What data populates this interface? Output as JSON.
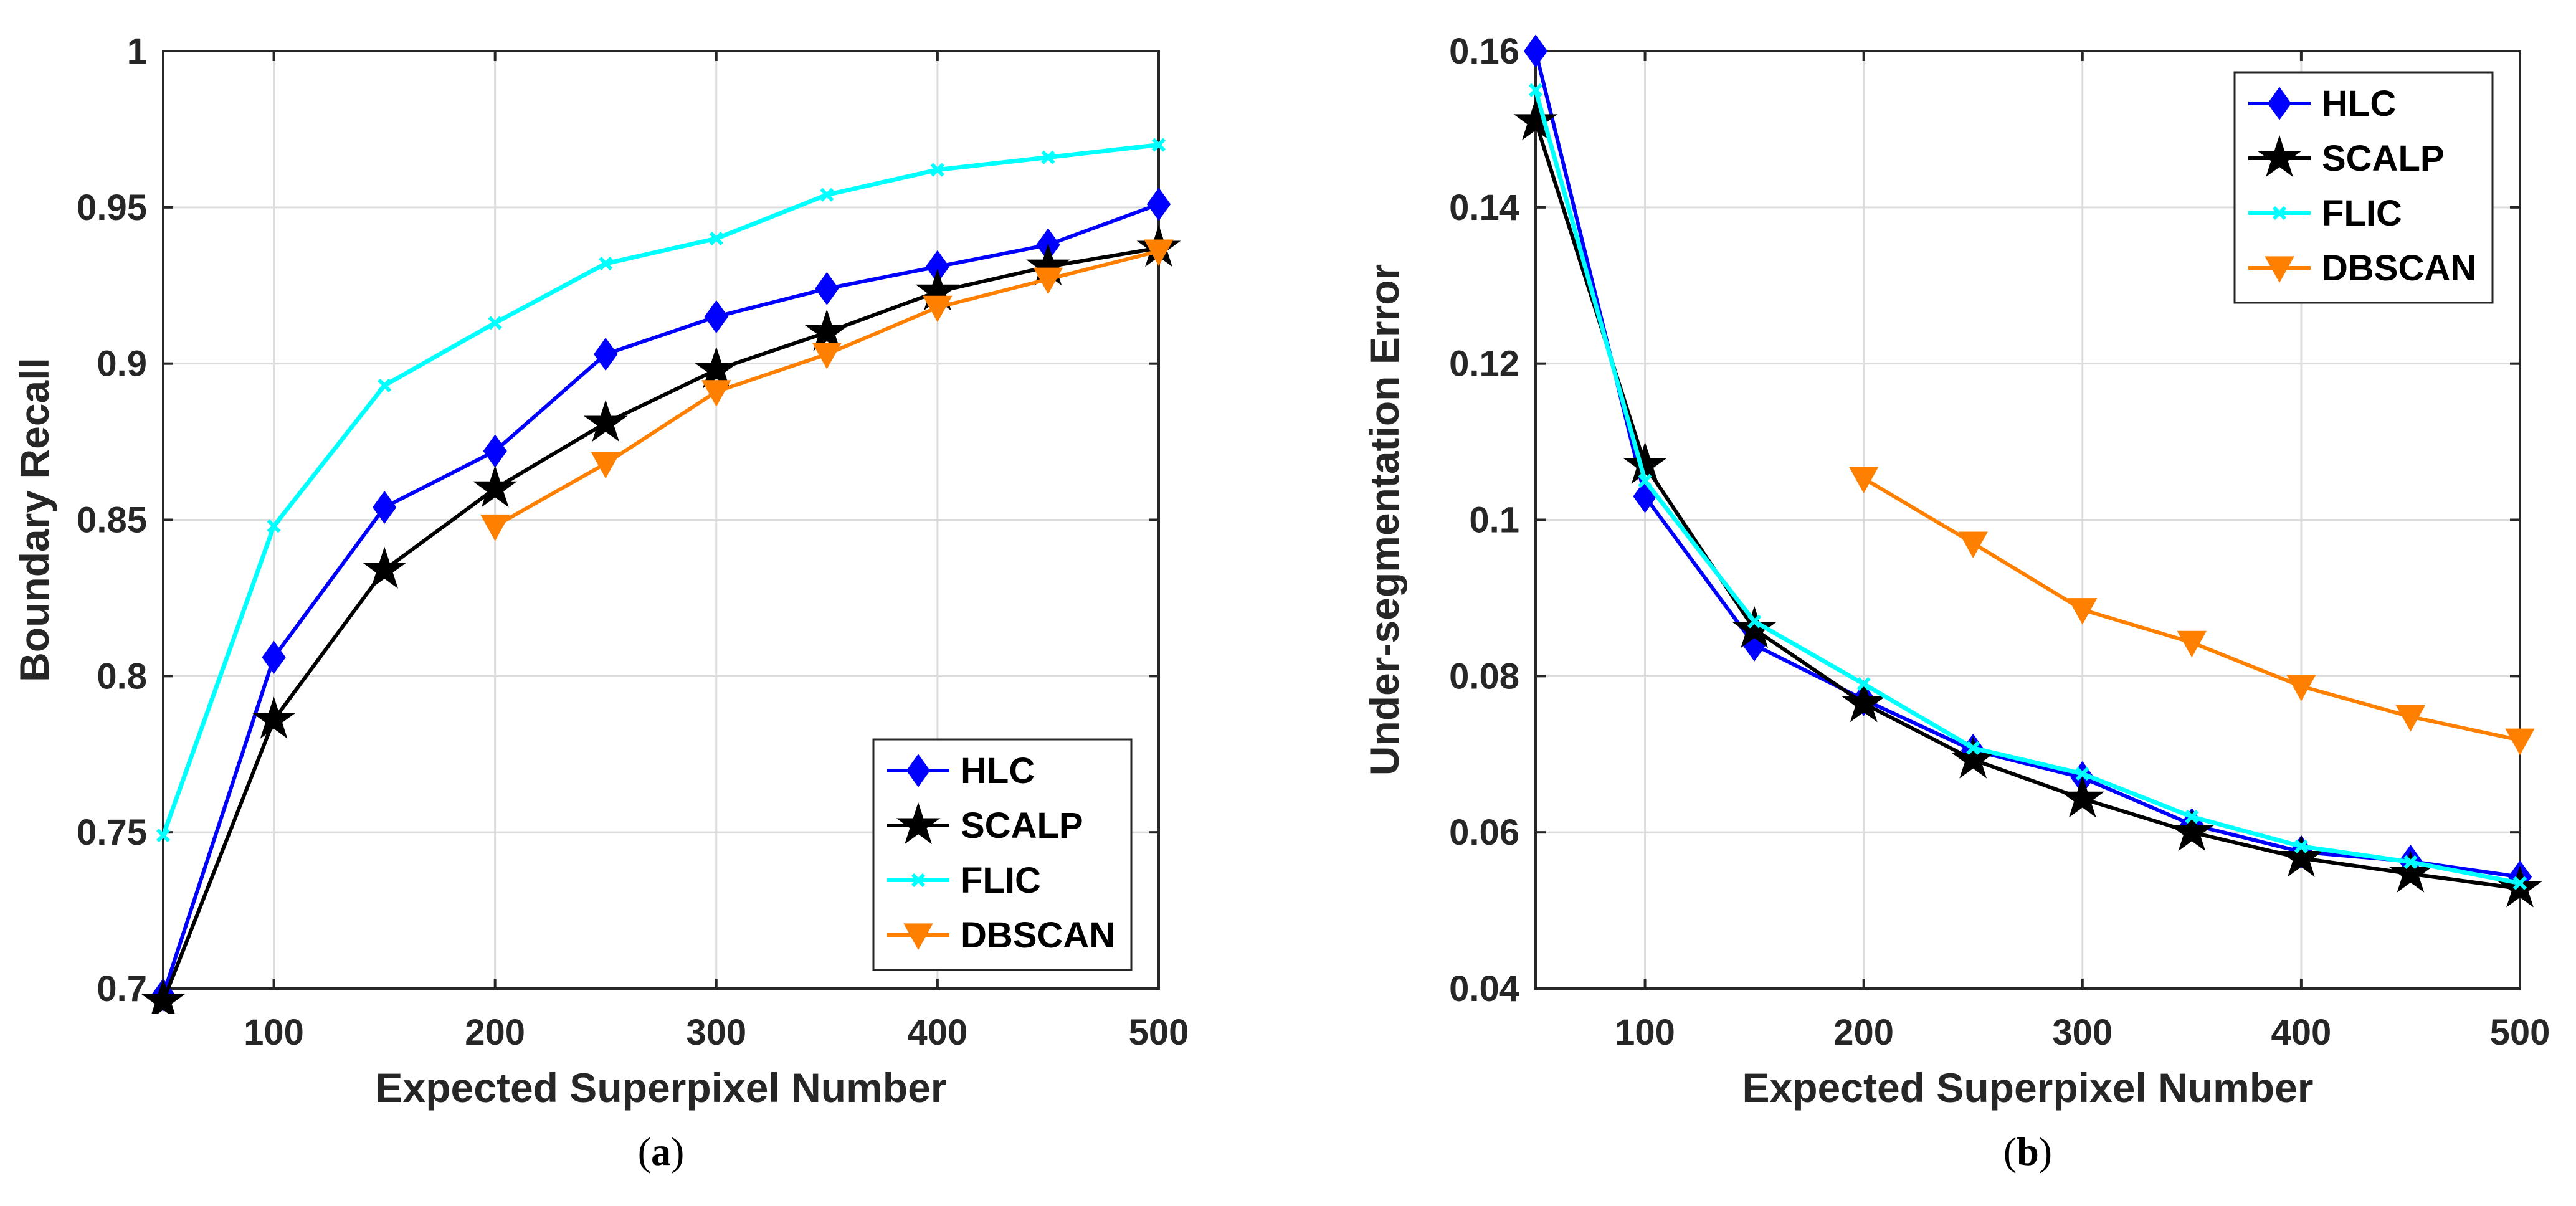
{
  "colors": {
    "HLC": "#0000ff",
    "SCALP": "#000000",
    "FLIC": "#00ffff",
    "DBSCAN": "#ff8000",
    "grid": "#dcdcdc",
    "axis": "#262626"
  },
  "chart_data": [
    {
      "type": "line",
      "panel_label": "a",
      "title": "",
      "xlabel": "Expected Superpixel Number",
      "ylabel": "Boundary Recall",
      "xlim": [
        50,
        500
      ],
      "ylim": [
        0.7,
        1.0
      ],
      "x_ticks": [
        100,
        200,
        300,
        400,
        500
      ],
      "x_tick_labels": [
        "100",
        "200",
        "300",
        "400",
        "500"
      ],
      "y_ticks": [
        0.7,
        0.75,
        0.8,
        0.85,
        0.9,
        0.95,
        1.0
      ],
      "y_tick_labels": [
        "0.7",
        "0.75",
        "0.8",
        "0.85",
        "0.9",
        "0.95",
        "1"
      ],
      "grid": true,
      "legend_position": "bottom-right",
      "series": [
        {
          "name": "HLC",
          "marker": "diamond",
          "x": [
            50,
            100,
            150,
            200,
            250,
            300,
            350,
            400,
            450,
            500
          ],
          "values": [
            0.698,
            0.806,
            0.854,
            0.872,
            0.903,
            0.915,
            0.924,
            0.931,
            0.938,
            0.951
          ]
        },
        {
          "name": "SCALP",
          "marker": "star",
          "x": [
            50,
            100,
            150,
            200,
            250,
            300,
            350,
            400,
            450,
            500
          ],
          "values": [
            0.696,
            0.786,
            0.834,
            0.86,
            0.881,
            0.898,
            0.91,
            0.923,
            0.931,
            0.937
          ]
        },
        {
          "name": "FLIC",
          "marker": "x",
          "x": [
            50,
            100,
            150,
            200,
            250,
            300,
            350,
            400,
            450,
            500
          ],
          "values": [
            0.749,
            0.848,
            0.893,
            0.913,
            0.932,
            0.94,
            0.954,
            0.962,
            0.966,
            0.97
          ]
        },
        {
          "name": "DBSCAN",
          "marker": "triangle-down",
          "x": [
            200,
            250,
            300,
            350,
            400,
            450,
            500
          ],
          "values": [
            0.848,
            0.868,
            0.891,
            0.903,
            0.918,
            0.927,
            0.936
          ]
        }
      ]
    },
    {
      "type": "line",
      "panel_label": "b",
      "title": "",
      "xlabel": "Expected Superpixel Number",
      "ylabel": "Under-segmentation Error",
      "xlim": [
        50,
        500
      ],
      "ylim": [
        0.04,
        0.16
      ],
      "x_ticks": [
        100,
        200,
        300,
        400,
        500
      ],
      "x_tick_labels": [
        "100",
        "200",
        "300",
        "400",
        "500"
      ],
      "y_ticks": [
        0.04,
        0.06,
        0.08,
        0.1,
        0.12,
        0.14,
        0.16
      ],
      "y_tick_labels": [
        "0.04",
        "0.06",
        "0.08",
        "0.1",
        "0.12",
        "0.14",
        "0.16"
      ],
      "grid": true,
      "legend_position": "top-right",
      "series": [
        {
          "name": "HLC",
          "marker": "diamond",
          "x": [
            50,
            100,
            150,
            200,
            250,
            300,
            350,
            400,
            450,
            500
          ],
          "values": [
            0.16,
            0.103,
            0.084,
            0.077,
            0.0705,
            0.067,
            0.061,
            0.0575,
            0.0563,
            0.0543
          ]
        },
        {
          "name": "SCALP",
          "marker": "star",
          "x": [
            50,
            100,
            150,
            200,
            250,
            300,
            350,
            400,
            450,
            500
          ],
          "values": [
            0.151,
            0.107,
            0.086,
            0.0765,
            0.0693,
            0.0643,
            0.06,
            0.0567,
            0.0547,
            0.0528
          ]
        },
        {
          "name": "FLIC",
          "marker": "x",
          "x": [
            50,
            100,
            150,
            200,
            250,
            300,
            350,
            400,
            450,
            500
          ],
          "values": [
            0.155,
            0.105,
            0.087,
            0.079,
            0.0708,
            0.0675,
            0.062,
            0.0582,
            0.0562,
            0.0535
          ]
        },
        {
          "name": "DBSCAN",
          "marker": "triangle-down",
          "x": [
            200,
            250,
            300,
            350,
            400,
            450,
            500
          ],
          "values": [
            0.1053,
            0.097,
            0.0885,
            0.0843,
            0.0787,
            0.0748,
            0.0718
          ]
        }
      ]
    }
  ],
  "captions": [
    "(a)",
    "(b)"
  ]
}
